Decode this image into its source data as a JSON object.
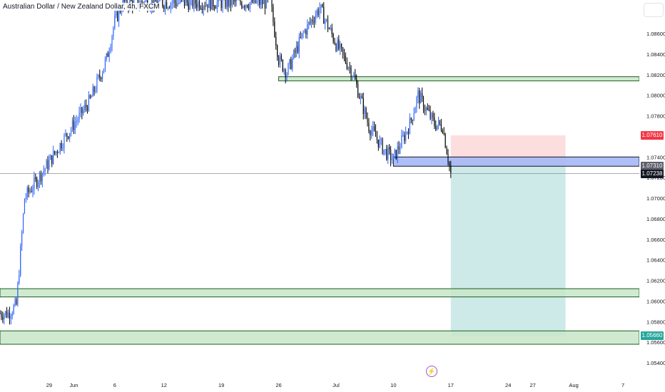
{
  "header": {
    "symbol_title": "Australian Dollar / New Zealand Dollar, 4h, FXCM"
  },
  "icons": {
    "scale_button": "scale-button-icon",
    "events": "lightning-icon",
    "events_glyph": "⚡"
  },
  "colors": {
    "candle_bull": "#2962ff",
    "candle_bear": "#000000",
    "zone_fill": "#c8e6c9",
    "zone_border": "#1b5e20",
    "entry_zone_fill": "#a4b8f5",
    "stop_fill": "#fcdede",
    "target_fill": "#cdeae8",
    "stop_tag": "#f23645",
    "target_tag": "#26a69a",
    "last_price_tag": "#131722",
    "entry_tag": "#5d606b"
  },
  "price_tags": [
    {
      "label": "1.07610",
      "value": 1.0761,
      "color_key": "stop_tag"
    },
    {
      "label": "1.07310",
      "value": 1.0731,
      "color_key": "entry_tag"
    },
    {
      "label": "1.07238",
      "value": 1.07238,
      "color_key": "last_price_tag"
    },
    {
      "label": "1.05660",
      "value": 1.0566,
      "color_key": "target_tag"
    }
  ],
  "chart_data": {
    "type": "candlestick",
    "y_scale": {
      "min": 1.0535,
      "max": 1.0885
    },
    "yticks": [
      {
        "label": "1.08600",
        "value": 1.086
      },
      {
        "label": "1.08400",
        "value": 1.084
      },
      {
        "label": "1.08200",
        "value": 1.082
      },
      {
        "label": "1.08000",
        "value": 1.08
      },
      {
        "label": "1.07800",
        "value": 1.078
      },
      {
        "label": "1.07400",
        "value": 1.074
      },
      {
        "label": "1.07200",
        "value": 1.072
      },
      {
        "label": "1.07000",
        "value": 1.07
      },
      {
        "label": "1.06800",
        "value": 1.068
      },
      {
        "label": "1.06600",
        "value": 1.066
      },
      {
        "label": "1.06400",
        "value": 1.064
      },
      {
        "label": "1.06200",
        "value": 1.062
      },
      {
        "label": "1.06000",
        "value": 1.06
      },
      {
        "label": "1.05800",
        "value": 1.058
      },
      {
        "label": "1.05600",
        "value": 1.056
      },
      {
        "label": "1.05400",
        "value": 1.054
      }
    ],
    "x_scale": {
      "start": "2023-05-23",
      "end": "2023-08-09"
    },
    "xticks": [
      {
        "label": "29",
        "date": "2023-05-29"
      },
      {
        "label": "Jun",
        "date": "2023-06-01"
      },
      {
        "label": "6",
        "date": "2023-06-06"
      },
      {
        "label": "12",
        "date": "2023-06-12"
      },
      {
        "label": "19",
        "date": "2023-06-19"
      },
      {
        "label": "26",
        "date": "2023-06-26"
      },
      {
        "label": "Jul",
        "date": "2023-07-03"
      },
      {
        "label": "10",
        "date": "2023-07-10"
      },
      {
        "label": "17",
        "date": "2023-07-17"
      },
      {
        "label": "24",
        "date": "2023-07-24"
      },
      {
        "label": "27",
        "date": "2023-07-27"
      },
      {
        "label": "Aug",
        "date": "2023-08-01"
      },
      {
        "label": "7",
        "date": "2023-08-07"
      }
    ],
    "anchors": [
      {
        "date": "2023-05-23",
        "price": 1.0588
      },
      {
        "date": "2023-05-24",
        "price": 1.0588
      },
      {
        "date": "2023-05-25",
        "price": 1.0596
      },
      {
        "date": "2023-05-26",
        "price": 1.07
      },
      {
        "date": "2023-05-29",
        "price": 1.0735
      },
      {
        "date": "2023-05-31",
        "price": 1.076
      },
      {
        "date": "2023-06-03",
        "price": 1.0795
      },
      {
        "date": "2023-06-05",
        "price": 1.0835
      },
      {
        "date": "2023-06-06",
        "price": 1.0872
      },
      {
        "date": "2023-06-07",
        "price": 1.089
      },
      {
        "date": "2023-06-25",
        "price": 1.089
      },
      {
        "date": "2023-06-26",
        "price": 1.0835
      },
      {
        "date": "2023-06-27",
        "price": 1.0822
      },
      {
        "date": "2023-06-29",
        "price": 1.086
      },
      {
        "date": "2023-07-01",
        "price": 1.0885
      },
      {
        "date": "2023-07-03",
        "price": 1.085
      },
      {
        "date": "2023-07-05",
        "price": 1.0822
      },
      {
        "date": "2023-07-07",
        "price": 1.077
      },
      {
        "date": "2023-07-09",
        "price": 1.0745
      },
      {
        "date": "2023-07-10",
        "price": 1.0738
      },
      {
        "date": "2023-07-12",
        "price": 1.0772
      },
      {
        "date": "2023-07-13",
        "price": 1.08
      },
      {
        "date": "2023-07-15",
        "price": 1.0772
      },
      {
        "date": "2023-07-16",
        "price": 1.077
      },
      {
        "date": "2023-07-17",
        "price": 1.07238
      }
    ],
    "support_resistance_zones": [
      {
        "from_date": "2023-06-26",
        "to_date": "2023-08-09",
        "high": 1.0818,
        "low": 1.0814
      },
      {
        "from_date": "2023-05-23",
        "to_date": "2023-08-09",
        "high": 1.0612,
        "low": 1.0604
      },
      {
        "from_date": "2023-05-23",
        "to_date": "2023-08-09",
        "high": 1.0571,
        "low": 1.0558
      }
    ],
    "entry_zone": {
      "from_date": "2023-07-10",
      "to_date": "2023-08-09",
      "high": 1.074,
      "low": 1.0731
    },
    "position": {
      "side": "short",
      "from_date": "2023-07-17",
      "to_date": "2023-07-31",
      "entry": 1.0731,
      "stop": 1.0761,
      "target": 1.0566
    },
    "last_price": 1.07238
  }
}
